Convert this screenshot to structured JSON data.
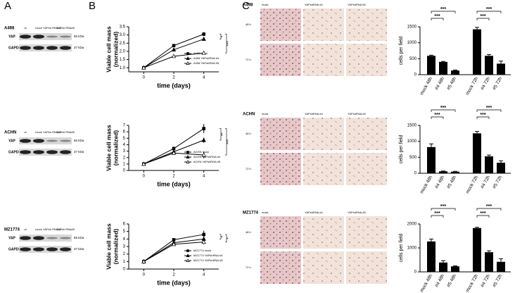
{
  "panels": [
    "A",
    "B",
    "C"
  ],
  "blots": [
    {
      "cell_line": "A498",
      "lanes": [
        "ut",
        "mock",
        "YAPsh RNA#4",
        "YAPsh RNA#5"
      ],
      "rows": [
        "YAP",
        "GAPDH"
      ],
      "sizes": [
        "65 kDa",
        "37 kDa"
      ]
    },
    {
      "cell_line": "ACHN",
      "lanes": [
        "ut",
        "mock",
        "YAPsh RNA#4",
        "YAPsh RNA#5"
      ],
      "rows": [
        "YAP",
        "GAPDH"
      ],
      "sizes": [
        "65 kDa",
        "37 kDa"
      ]
    },
    {
      "cell_line": "MZ1774",
      "lanes": [
        "ut",
        "mock",
        "YAPsh RNA#4",
        "YAPsh RNA#5"
      ],
      "rows": [
        "YAP",
        "GAPDH"
      ],
      "sizes": [
        "65 kDa",
        "37 kDa"
      ]
    }
  ],
  "micrographs": [
    {
      "cell_line": "A498",
      "columns": [
        "mock",
        "YAPshRNA #4",
        "YAPshRNA #5"
      ],
      "rows": [
        "48 h",
        "72 h"
      ]
    },
    {
      "cell_line": "ACHN",
      "columns": [
        "mock",
        "YAPshRNA #4",
        "YAPshRNA #5"
      ],
      "rows": [
        "48 h",
        "72 h"
      ]
    },
    {
      "cell_line": "MZ1774",
      "columns": [
        "mock",
        "YAPshRNA #4",
        "YAPshRNA #5"
      ],
      "rows": [
        "48 h",
        "72 h"
      ]
    }
  ],
  "chart_data": [
    {
      "type": "line",
      "xlabel": "time  (days)",
      "ylabel": [
        "Viable cell mass",
        "(normalized)"
      ],
      "x": [
        0,
        2,
        4
      ],
      "xlim": [
        -1,
        5
      ],
      "xticks": [
        0,
        2,
        4
      ],
      "ylim": [
        0.75,
        3.5
      ],
      "yticks": [
        {
          "value": 1,
          "label": "1.0"
        },
        {
          "value": 1.5,
          "label": "1.5"
        },
        {
          "value": 2,
          "label": "2.0"
        },
        {
          "value": 2.5,
          "label": "2.5"
        },
        {
          "value": 3,
          "label": "3.0"
        },
        {
          "value": 3.5,
          "label": "3.5"
        }
      ],
      "series": [
        {
          "name": "A498 mock",
          "color": "#000000",
          "marker": "square",
          "values": [
            1,
            2.35,
            3.05
          ],
          "errors": [
            0.03,
            0.05,
            0.12
          ]
        },
        {
          "name": "A498 YAPshRNA #4",
          "color": "#000000",
          "marker": "triangle",
          "values": [
            1,
            2.1,
            2.75
          ],
          "errors": [
            0.03,
            0.05,
            0.1
          ]
        },
        {
          "name": "A498 YAPshRNA #5",
          "color": "#000000",
          "marker": "open-triangle",
          "values": [
            1,
            1.7,
            1.9
          ],
          "errors": [
            0.03,
            0.04,
            0.08
          ]
        }
      ],
      "annotations": [
        "*",
        "***"
      ]
    },
    {
      "type": "line",
      "xlabel": "time  (days)",
      "ylabel": [
        "Viable cell mass",
        "(normalized)"
      ],
      "x": [
        0,
        2,
        4
      ],
      "xlim": [
        -1,
        5
      ],
      "xticks": [
        0,
        2,
        4
      ],
      "ylim": [
        0,
        7
      ],
      "yticks": [
        0,
        1,
        2,
        3,
        4,
        5,
        6,
        7
      ],
      "series": [
        {
          "name": "ACHN mock",
          "color": "#000000",
          "marker": "square",
          "values": [
            1,
            3.4,
            6.5
          ],
          "errors": [
            0.15,
            0.3,
            0.7
          ]
        },
        {
          "name": "ACHN YAPshRNA #4",
          "color": "#000000",
          "marker": "triangle",
          "values": [
            1,
            2.9,
            4.7
          ],
          "errors": [
            0.1,
            0.2,
            0.4
          ]
        },
        {
          "name": "ACHN YAPshRNA #5",
          "color": "#000000",
          "marker": "open-triangle",
          "values": [
            1,
            2.7,
            2.4
          ],
          "errors": [
            0.1,
            0.2,
            0.5
          ]
        }
      ],
      "annotations": [
        "**",
        "***"
      ]
    },
    {
      "type": "line",
      "xlabel": "time  (days)",
      "ylabel": [
        "Viable cell mass",
        "(normalized)"
      ],
      "x": [
        0,
        2,
        4
      ],
      "xlim": [
        -1,
        5
      ],
      "xticks": [
        0,
        2,
        4
      ],
      "ylim": [
        0,
        6
      ],
      "yticks": [
        0,
        1,
        2,
        3,
        4,
        5,
        6
      ],
      "series": [
        {
          "name": "MZ1774 mock",
          "color": "#000000",
          "marker": "square",
          "values": [
            1,
            3.9,
            4.6
          ],
          "errors": [
            0.3,
            0.1,
            0.5
          ]
        },
        {
          "name": "MZ1774 YAPshRNA #4",
          "color": "#000000",
          "marker": "triangle",
          "values": [
            1,
            3.5,
            4.0
          ],
          "errors": [
            0.2,
            0.1,
            0.4
          ]
        },
        {
          "name": "MZ1774 YAPshRNA #5",
          "color": "#000000",
          "marker": "open-triangle",
          "values": [
            1,
            3.3,
            3.6
          ],
          "errors": [
            0.2,
            0.1,
            0.3
          ]
        }
      ],
      "annotations": [
        "*",
        "*"
      ]
    },
    {
      "type": "bar",
      "ylabel": "cells per field",
      "color": "#000000",
      "categories": [
        "mock 48h",
        "#4 48h",
        "#5 48h",
        "mock 72h",
        "#4 72h",
        "#5 72h"
      ],
      "values": [
        590,
        400,
        130,
        1420,
        590,
        345
      ],
      "errors": [
        20,
        15,
        15,
        60,
        40,
        80
      ],
      "ylim": [
        0,
        1500
      ],
      "yticks": [
        0,
        500,
        1000,
        1500
      ],
      "annotations": [
        {
          "text": "***",
          "from": 0,
          "to": 1
        },
        {
          "text": "***",
          "from": 0,
          "to": 2
        },
        {
          "text": "***",
          "from": 3,
          "to": 4
        },
        {
          "text": "***",
          "from": 3,
          "to": 5
        }
      ]
    },
    {
      "type": "bar",
      "ylabel": "cells per field",
      "color": "#000000",
      "categories": [
        "mock 48h",
        "#4 48h",
        "#5 48h",
        "mock 72h",
        "#4 72h",
        "#5 72h"
      ],
      "values": [
        820,
        60,
        50,
        1250,
        530,
        330
      ],
      "errors": [
        100,
        10,
        10,
        60,
        40,
        60
      ],
      "ylim": [
        0,
        1500
      ],
      "yticks": [
        0,
        500,
        1000,
        1500
      ],
      "annotations": [
        {
          "text": "***",
          "from": 0,
          "to": 1
        },
        {
          "text": "***",
          "from": 0,
          "to": 2
        },
        {
          "text": "***",
          "from": 3,
          "to": 4
        },
        {
          "text": "***",
          "from": 3,
          "to": 5
        }
      ]
    },
    {
      "type": "bar",
      "ylabel": "cells per field",
      "color": "#000000",
      "categories": [
        "mock 48h",
        "#4 48h",
        "#5 48h",
        "mock 72h",
        "#4 72h",
        "#5 72h"
      ],
      "values": [
        1270,
        390,
        230,
        1830,
        820,
        420
      ],
      "errors": [
        100,
        80,
        20,
        30,
        60,
        130
      ],
      "ylim": [
        0,
        2000
      ],
      "yticks": [
        0,
        1000,
        2000
      ],
      "annotations": [
        {
          "text": "***",
          "from": 0,
          "to": 1
        },
        {
          "text": "***",
          "from": 0,
          "to": 2
        },
        {
          "text": "***",
          "from": 3,
          "to": 4
        },
        {
          "text": "***",
          "from": 3,
          "to": 5
        }
      ]
    }
  ]
}
